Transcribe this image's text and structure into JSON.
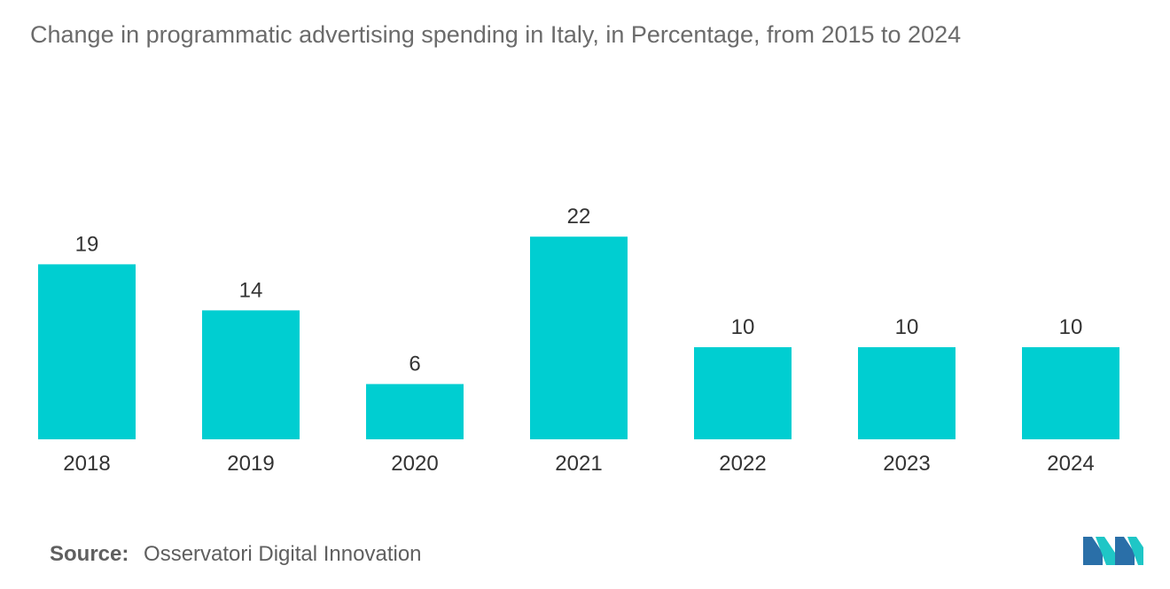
{
  "title": "Change in programmatic advertising spending in Italy, in Percentage, from 2015 to 2024",
  "source": {
    "label": "Source:",
    "value": "Osservatori Digital Innovation"
  },
  "colors": {
    "bar": "#00CED1",
    "text": "#333333",
    "title": "#6b6b6b",
    "logo_dark": "#2a6fa8",
    "logo_light": "#1fc6c6"
  },
  "logo": {
    "icon": "mordor-intelligence-logo"
  },
  "chart_data": {
    "type": "bar",
    "title": "Change in programmatic advertising spending in Italy, in Percentage, from 2015 to 2024",
    "categories": [
      "2018",
      "2019",
      "2020",
      "2021",
      "2022",
      "2023",
      "2024"
    ],
    "values": [
      19,
      14,
      6,
      22,
      10,
      10,
      10
    ],
    "xlabel": "",
    "ylabel": "",
    "ylim": [
      0,
      22
    ],
    "grid": false,
    "legend": "none",
    "data_labels": true
  }
}
